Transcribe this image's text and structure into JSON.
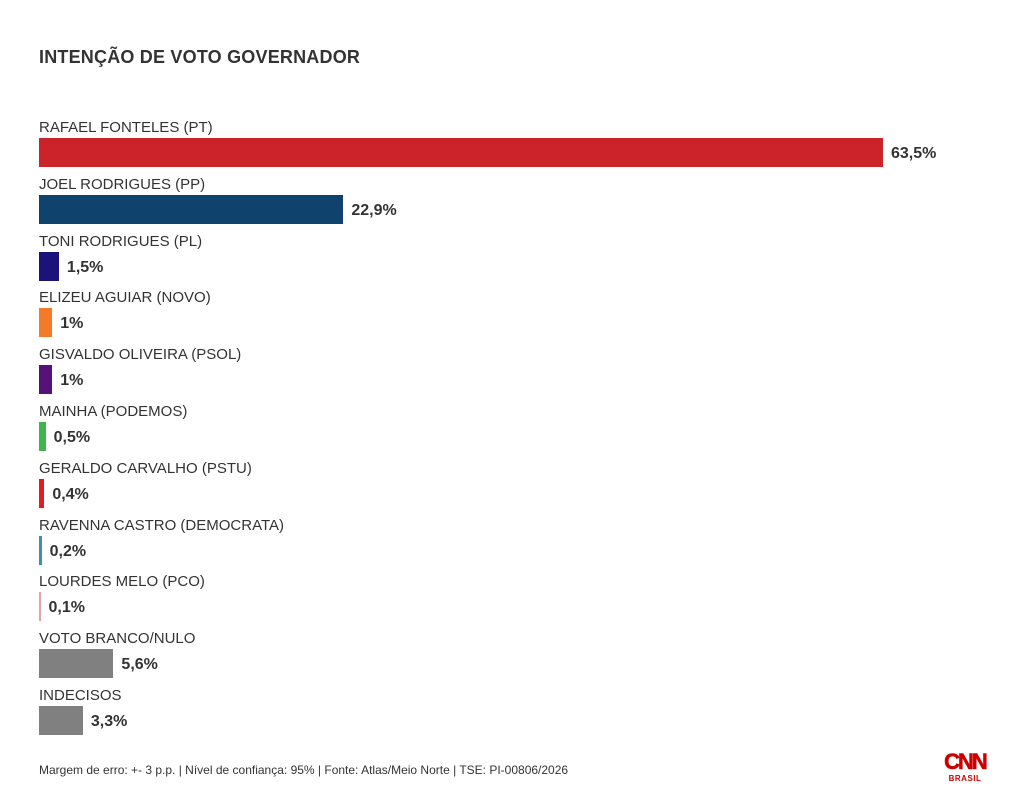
{
  "chart_data": {
    "type": "bar",
    "orientation": "horizontal",
    "title": "INTENÇÃO DE VOTO GOVERNADOR",
    "categories": [
      "RAFAEL FONTELES (PT)",
      "JOEL RODRIGUES (PP)",
      "TONI RODRIGUES (PL)",
      "ELIZEU AGUIAR (NOVO)",
      "GISVALDO OLIVEIRA (PSOL)",
      "MAINHA (PODEMOS)",
      "GERALDO CARVALHO (PSTU)",
      "RAVENNA CASTRO (DEMOCRATA)",
      "LOURDES MELO (PCO)",
      "VOTO BRANCO/NULO",
      "INDECISOS"
    ],
    "values": [
      63.5,
      22.9,
      1.5,
      1,
      1,
      0.5,
      0.4,
      0.2,
      0.1,
      5.6,
      3.3
    ],
    "value_labels": [
      "63,5%",
      "22,9%",
      "1,5%",
      "1%",
      "1%",
      "0,5%",
      "0,4%",
      "0,2%",
      "0,1%",
      "5,6%",
      "3,3%"
    ],
    "colors": [
      "#cc2229",
      "#10426e",
      "#1a137a",
      "#f47a28",
      "#57117a",
      "#3fb54e",
      "#e11b22",
      "#3d8fae",
      "#e3a1ab",
      "#808080",
      "#808080"
    ],
    "xlim": [
      0,
      63.5
    ],
    "grid": false,
    "legend": "none"
  },
  "footer": {
    "text": "Margem de erro: +- 3 p.p. | Nível de confiança: 95% | Fonte: Atlas/Meio Norte | TSE: PI-00806/2026"
  },
  "logo": {
    "mark": "CNN",
    "sub": "BRASIL",
    "color": "#cc0000"
  }
}
